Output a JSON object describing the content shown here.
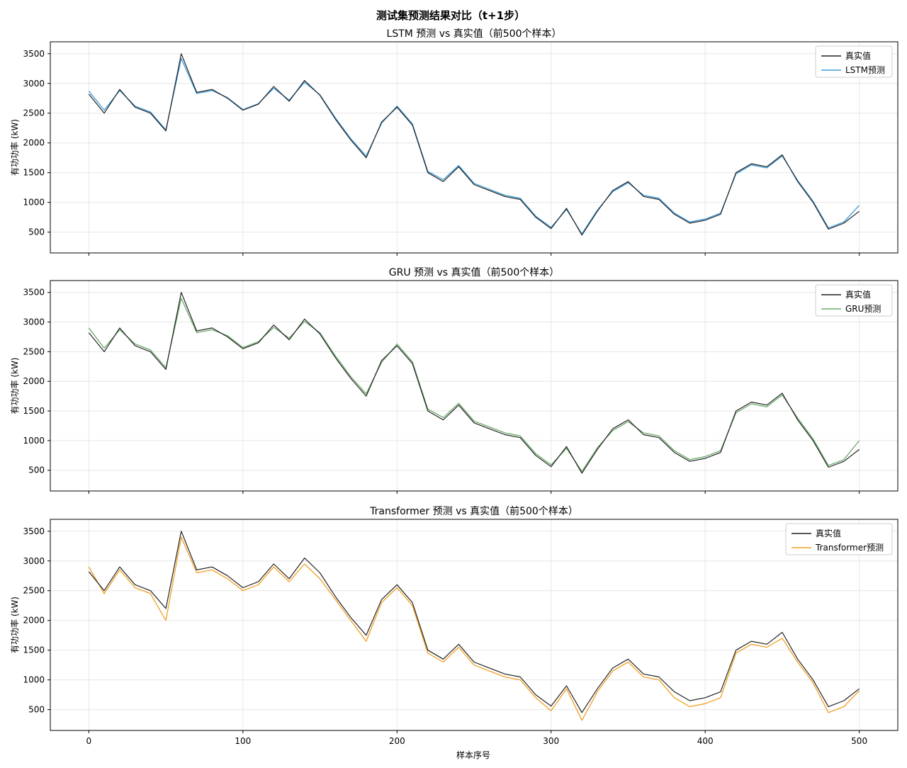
{
  "figure": {
    "suptitle": "测试集预测结果对比（t+1步）",
    "xlabel": "样本序号"
  },
  "chart_data": [
    {
      "type": "line",
      "title": "LSTM 预测 vs 真实值（前500个样本）",
      "xlabel": "",
      "ylabel": "有功功率 (kW)",
      "xlim": [
        -25,
        525
      ],
      "ylim": [
        150,
        3700
      ],
      "xticks": [
        0,
        100,
        200,
        300,
        400,
        500
      ],
      "yticks": [
        500,
        1000,
        1500,
        2000,
        2500,
        3000,
        3500
      ],
      "grid": true,
      "legend": "top-right",
      "x": [
        0,
        10,
        20,
        30,
        40,
        50,
        60,
        70,
        80,
        90,
        100,
        110,
        120,
        130,
        140,
        150,
        160,
        170,
        180,
        190,
        200,
        210,
        220,
        230,
        240,
        250,
        260,
        270,
        280,
        290,
        300,
        310,
        320,
        330,
        340,
        350,
        360,
        370,
        380,
        390,
        400,
        410,
        420,
        430,
        440,
        450,
        460,
        470,
        480,
        490,
        500
      ],
      "series": [
        {
          "name": "真实值",
          "color": "#222222",
          "values": [
            2820,
            2500,
            2900,
            2600,
            2500,
            2200,
            3500,
            2850,
            2900,
            2750,
            2550,
            2650,
            2950,
            2700,
            3050,
            2800,
            2400,
            2050,
            1750,
            2350,
            2600,
            2300,
            1500,
            1350,
            1600,
            1300,
            1200,
            1100,
            1050,
            750,
            560,
            900,
            450,
            850,
            1200,
            1350,
            1100,
            1050,
            800,
            650,
            700,
            800,
            1500,
            1650,
            1600,
            1800,
            1350,
            1000,
            550,
            650,
            850
          ]
        },
        {
          "name": "LSTM预测",
          "color": "#3a9ad9",
          "values": [
            2870,
            2550,
            2880,
            2620,
            2520,
            2220,
            3420,
            2830,
            2880,
            2760,
            2560,
            2660,
            2920,
            2720,
            3020,
            2810,
            2420,
            2070,
            1780,
            2330,
            2620,
            2320,
            1520,
            1380,
            1620,
            1320,
            1220,
            1120,
            1070,
            770,
            580,
            880,
            470,
            870,
            1180,
            1330,
            1120,
            1070,
            820,
            670,
            720,
            820,
            1480,
            1630,
            1580,
            1780,
            1370,
            1020,
            570,
            670,
            950
          ]
        }
      ]
    },
    {
      "type": "line",
      "title": "GRU 预测 vs 真实值（前500个样本）",
      "xlabel": "",
      "ylabel": "有功功率 (kW)",
      "xlim": [
        -25,
        525
      ],
      "ylim": [
        150,
        3700
      ],
      "xticks": [
        0,
        100,
        200,
        300,
        400,
        500
      ],
      "yticks": [
        500,
        1000,
        1500,
        2000,
        2500,
        3000,
        3500
      ],
      "grid": true,
      "legend": "top-right",
      "x": [
        0,
        10,
        20,
        30,
        40,
        50,
        60,
        70,
        80,
        90,
        100,
        110,
        120,
        130,
        140,
        150,
        160,
        170,
        180,
        190,
        200,
        210,
        220,
        230,
        240,
        250,
        260,
        270,
        280,
        290,
        300,
        310,
        320,
        330,
        340,
        350,
        360,
        370,
        380,
        390,
        400,
        410,
        420,
        430,
        440,
        450,
        460,
        470,
        480,
        490,
        500
      ],
      "series": [
        {
          "name": "真实值",
          "color": "#222222",
          "values": [
            2820,
            2500,
            2900,
            2600,
            2500,
            2200,
            3500,
            2850,
            2900,
            2750,
            2550,
            2650,
            2950,
            2700,
            3050,
            2800,
            2400,
            2050,
            1750,
            2350,
            2600,
            2300,
            1500,
            1350,
            1600,
            1300,
            1200,
            1100,
            1050,
            750,
            560,
            900,
            450,
            850,
            1200,
            1350,
            1100,
            1050,
            800,
            650,
            700,
            800,
            1500,
            1650,
            1600,
            1800,
            1350,
            1000,
            550,
            650,
            850
          ]
        },
        {
          "name": "GRU预测",
          "color": "#6aaa6a",
          "values": [
            2900,
            2560,
            2870,
            2630,
            2530,
            2230,
            3400,
            2820,
            2870,
            2770,
            2570,
            2670,
            2910,
            2730,
            3010,
            2820,
            2430,
            2080,
            1790,
            2320,
            2630,
            2330,
            1530,
            1390,
            1630,
            1330,
            1230,
            1130,
            1080,
            780,
            590,
            870,
            480,
            880,
            1170,
            1320,
            1130,
            1080,
            830,
            680,
            730,
            830,
            1470,
            1620,
            1570,
            1770,
            1380,
            1030,
            580,
            680,
            1000
          ]
        }
      ]
    },
    {
      "type": "line",
      "title": "Transformer 预测 vs 真实值（前500个样本）",
      "xlabel": "样本序号",
      "ylabel": "有功功率 (kW)",
      "xlim": [
        -25,
        525
      ],
      "ylim": [
        150,
        3700
      ],
      "xticks": [
        0,
        100,
        200,
        300,
        400,
        500
      ],
      "yticks": [
        500,
        1000,
        1500,
        2000,
        2500,
        3000,
        3500
      ],
      "grid": true,
      "legend": "top-right",
      "x": [
        0,
        10,
        20,
        30,
        40,
        50,
        60,
        70,
        80,
        90,
        100,
        110,
        120,
        130,
        140,
        150,
        160,
        170,
        180,
        190,
        200,
        210,
        220,
        230,
        240,
        250,
        260,
        270,
        280,
        290,
        300,
        310,
        320,
        330,
        340,
        350,
        360,
        370,
        380,
        390,
        400,
        410,
        420,
        430,
        440,
        450,
        460,
        470,
        480,
        490,
        500
      ],
      "series": [
        {
          "name": "真实值",
          "color": "#222222",
          "values": [
            2820,
            2500,
            2900,
            2600,
            2500,
            2200,
            3500,
            2850,
            2900,
            2750,
            2550,
            2650,
            2950,
            2700,
            3050,
            2800,
            2400,
            2050,
            1750,
            2350,
            2600,
            2300,
            1500,
            1350,
            1600,
            1300,
            1200,
            1100,
            1050,
            750,
            560,
            900,
            450,
            850,
            1200,
            1350,
            1100,
            1050,
            800,
            650,
            700,
            800,
            1500,
            1650,
            1600,
            1800,
            1350,
            1000,
            550,
            650,
            850
          ]
        },
        {
          "name": "Transformer预测",
          "color": "#f0a020",
          "values": [
            2900,
            2450,
            2850,
            2550,
            2450,
            2000,
            3400,
            2800,
            2850,
            2700,
            2500,
            2600,
            2900,
            2650,
            2950,
            2700,
            2350,
            2000,
            1650,
            2300,
            2550,
            2250,
            1450,
            1300,
            1550,
            1250,
            1150,
            1050,
            1000,
            700,
            480,
            850,
            320,
            800,
            1150,
            1300,
            1050,
            1000,
            700,
            550,
            600,
            700,
            1450,
            1600,
            1550,
            1700,
            1300,
            950,
            450,
            550,
            820
          ]
        }
      ]
    }
  ]
}
